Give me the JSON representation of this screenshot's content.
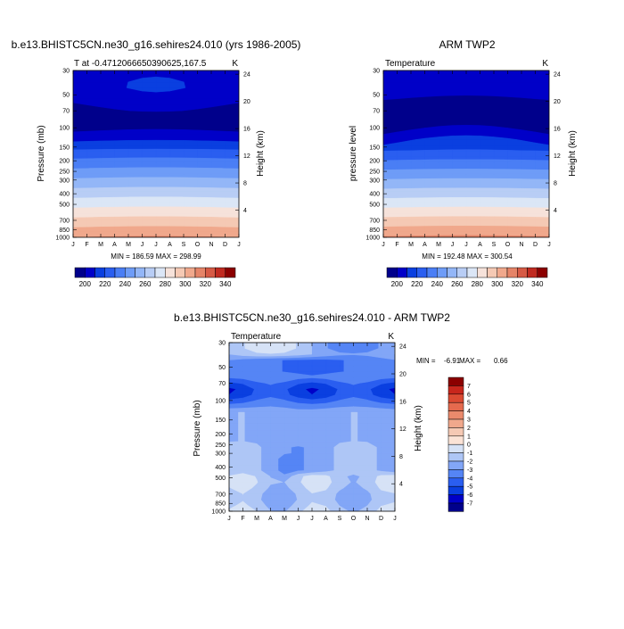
{
  "palette_raw": [
    "#00008b",
    "#0000c8",
    "#0a3fe0",
    "#2a5ef0",
    "#4a7ef5",
    "#6e9cf7",
    "#93b6f7",
    "#b8cdf5",
    "#dbe6f6",
    "#f6e2da",
    "#f5c9b4",
    "#f0a88c",
    "#e58468",
    "#d65a45",
    "#c02a20",
    "#8b0000"
  ],
  "palette_diff": [
    "#00008b",
    "#0000c8",
    "#0a3fe0",
    "#2a5ef0",
    "#5585f5",
    "#82a6f7",
    "#aec6f6",
    "#d6e2f6",
    "#fbe3d6",
    "#f5c9b4",
    "#f0a88c",
    "#ea8a6c",
    "#e56a4e",
    "#db4a32",
    "#c8261c",
    "#8b0000"
  ],
  "month_labels": [
    "J",
    "F",
    "M",
    "A",
    "M",
    "J",
    "J",
    "A",
    "S",
    "O",
    "N",
    "D",
    "J"
  ],
  "pressure_ticks": [
    30,
    50,
    70,
    100,
    150,
    200,
    250,
    300,
    400,
    500,
    700,
    850,
    1000
  ],
  "pressure_tick_labels": [
    "30",
    "50",
    "70",
    "100",
    "150",
    "200",
    "250",
    "300",
    "400",
    "500",
    "700",
    "850",
    "1000"
  ],
  "height_ticks": [
    4,
    8,
    12,
    16,
    20,
    24
  ],
  "height_tick_labels": [
    "4",
    "8",
    "12",
    "16",
    "20",
    "24"
  ],
  "raw_colorbar": {
    "labels": [
      "200",
      "220",
      "240",
      "260",
      "280",
      "300",
      "320",
      "340"
    ]
  },
  "diff_colorbar": {
    "labels": [
      "7",
      "6",
      "5",
      "4",
      "3",
      "2",
      "1",
      "0",
      "-1",
      "-2",
      "-3",
      "-4",
      "-5",
      "-6",
      "-7"
    ]
  },
  "chart_data": [
    {
      "type": "heatmap",
      "id": "model",
      "title": "b.e13.BHISTC5CN.ne30_g16.sehires24.010 (yrs 1986-2005)",
      "left_label": "T at -0.4712066650390625,167.5",
      "right_label": "K",
      "ylabel": "Pressure (mb)",
      "ylabel_right": "Height (km)",
      "stats": "MIN = 186.59 MAX = 298.99",
      "ylim": [
        1000,
        30
      ],
      "levels": [
        190,
        200,
        210,
        220,
        230,
        240,
        250,
        260,
        270,
        280,
        290,
        300,
        310,
        320,
        330,
        340
      ]
    },
    {
      "type": "heatmap",
      "id": "obs",
      "title": "ARM TWP2",
      "left_label": "Temperature",
      "right_label": "K",
      "ylabel": "pressure level",
      "ylabel_right": "Height (km)",
      "stats": "MIN = 192.48 MAX = 300.54",
      "ylim": [
        1000,
        30
      ],
      "levels": [
        190,
        200,
        210,
        220,
        230,
        240,
        250,
        260,
        270,
        280,
        290,
        300,
        310,
        320,
        330,
        340
      ]
    },
    {
      "type": "heatmap",
      "id": "diff",
      "title": "b.e13.BHISTC5CN.ne30_g16.sehires24.010 - ARM TWP2",
      "left_label": "Temperature",
      "right_label": "K",
      "ylabel": "Pressure (mb)",
      "ylabel_right": "Height (km)",
      "stats_min_label": "MIN =",
      "stats_min_value": "-6.91",
      "stats_max_label": "MAX =",
      "stats_max_value": "0.66",
      "ylim": [
        1000,
        30
      ],
      "levels": [
        -7,
        -6,
        -5,
        -4,
        -3,
        -2,
        -1,
        0,
        1,
        2,
        3,
        4,
        5,
        6,
        7
      ]
    }
  ]
}
